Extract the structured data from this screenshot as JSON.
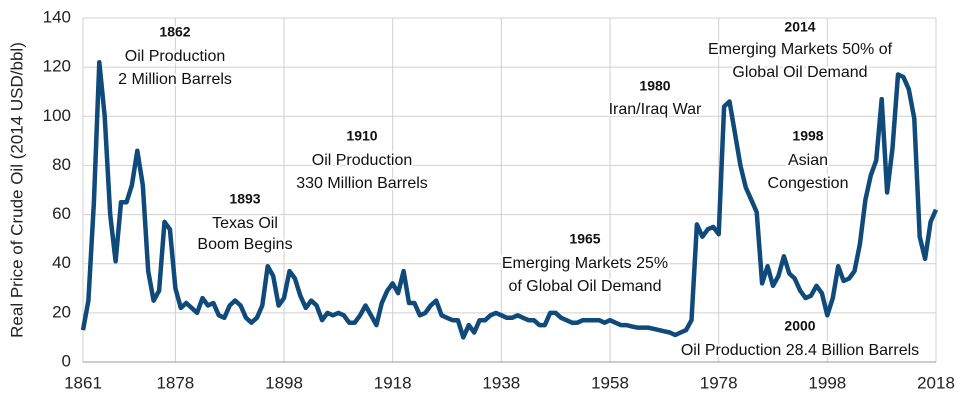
{
  "chart_data": {
    "type": "line",
    "ylabel": "Real Price of Crude Oil (2014 USD/bbl)",
    "x": [
      1861,
      1862,
      1863,
      1864,
      1865,
      1866,
      1867,
      1868,
      1869,
      1870,
      1871,
      1872,
      1873,
      1874,
      1875,
      1876,
      1877,
      1878,
      1879,
      1880,
      1881,
      1882,
      1883,
      1884,
      1885,
      1886,
      1887,
      1888,
      1889,
      1890,
      1891,
      1892,
      1893,
      1894,
      1895,
      1896,
      1897,
      1898,
      1899,
      1900,
      1901,
      1902,
      1903,
      1904,
      1905,
      1906,
      1907,
      1908,
      1909,
      1910,
      1911,
      1912,
      1913,
      1914,
      1915,
      1916,
      1917,
      1918,
      1919,
      1920,
      1921,
      1922,
      1923,
      1924,
      1925,
      1926,
      1927,
      1928,
      1929,
      1930,
      1931,
      1932,
      1933,
      1934,
      1935,
      1936,
      1937,
      1938,
      1939,
      1940,
      1941,
      1942,
      1943,
      1944,
      1945,
      1946,
      1947,
      1948,
      1949,
      1950,
      1951,
      1952,
      1953,
      1954,
      1955,
      1956,
      1957,
      1958,
      1959,
      1960,
      1961,
      1962,
      1963,
      1964,
      1965,
      1966,
      1967,
      1968,
      1969,
      1970,
      1971,
      1972,
      1973,
      1974,
      1975,
      1976,
      1977,
      1978,
      1979,
      1980,
      1981,
      1982,
      1983,
      1984,
      1985,
      1986,
      1987,
      1988,
      1989,
      1990,
      1991,
      1992,
      1993,
      1994,
      1995,
      1996,
      1997,
      1998,
      1999,
      2000,
      2001,
      2002,
      2003,
      2004,
      2005,
      2006,
      2007,
      2008,
      2009,
      2010,
      2011,
      2012,
      2013,
      2014,
      2015,
      2016,
      2017,
      2018
    ],
    "series": [
      {
        "name": "Real Price of Crude Oil",
        "color": "#0f4a7a",
        "values": [
          13,
          25,
          65,
          122,
          100,
          60,
          41,
          65,
          65,
          72,
          86,
          72,
          37,
          25,
          29,
          57,
          54,
          30,
          22,
          24,
          22,
          20,
          26,
          23,
          24,
          19,
          18,
          23,
          25,
          23,
          18,
          16,
          18,
          23,
          39,
          35,
          23,
          26,
          37,
          34,
          27,
          22,
          25,
          23,
          17,
          20,
          19,
          20,
          19,
          16,
          16,
          19,
          23,
          19,
          15,
          24,
          29,
          32,
          28,
          37,
          24,
          24,
          19,
          20,
          23,
          25,
          19,
          18,
          17,
          17,
          10,
          15,
          12,
          17,
          17,
          19,
          20,
          19,
          18,
          18,
          19,
          18,
          17,
          17,
          15,
          15,
          20,
          20,
          18,
          17,
          16,
          16,
          17,
          17,
          17,
          17,
          16,
          17,
          16,
          15,
          15,
          14.5,
          14,
          14,
          14,
          13.5,
          13,
          12.5,
          12,
          11,
          12,
          13,
          17,
          56,
          51,
          54,
          55,
          52,
          104,
          106,
          93,
          80,
          71,
          66,
          61,
          32,
          39,
          31,
          35,
          43,
          36,
          34,
          29,
          26,
          27,
          31,
          28,
          19,
          26,
          39,
          33,
          34,
          37,
          48,
          66,
          76,
          82,
          107,
          69,
          87,
          117,
          116,
          111,
          99,
          51,
          42,
          57,
          62
        ]
      }
    ],
    "xlim": [
      1861,
      2018
    ],
    "xticks": [
      1861,
      1878,
      1898,
      1918,
      1938,
      1958,
      1978,
      1998,
      2018
    ],
    "ylim": [
      0,
      140
    ],
    "yticks": [
      0,
      20,
      40,
      60,
      80,
      100,
      120,
      140
    ],
    "grid": true,
    "annotations": [
      {
        "year": "1862",
        "lines": [
          "Oil Production",
          "2 Million Barrels"
        ]
      },
      {
        "year": "1893",
        "lines": [
          "Texas Oil",
          "Boom Begins"
        ]
      },
      {
        "year": "1910",
        "lines": [
          "Oil Production",
          "330 Million Barrels"
        ]
      },
      {
        "year": "1965",
        "lines": [
          "Emerging Markets 25%",
          "of Global Oil Demand"
        ]
      },
      {
        "year": "1980",
        "lines": [
          "Iran/Iraq War"
        ]
      },
      {
        "year": "1998",
        "lines": [
          "Asian",
          "Congestion"
        ]
      },
      {
        "year": "2014",
        "lines": [
          "Emerging Markets 50% of",
          "Global Oil Demand"
        ]
      },
      {
        "year": "2000",
        "lines": [
          "Oil Production 28.4 Billion Barrels"
        ]
      }
    ]
  }
}
